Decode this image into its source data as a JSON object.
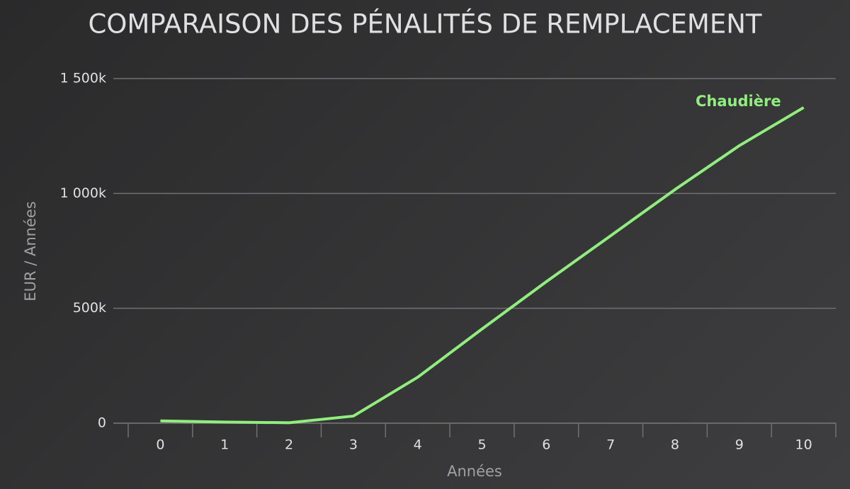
{
  "chart_data": {
    "type": "line",
    "title": "COMPARAISON DES PÉNALITÉS DE REMPLACEMENT",
    "x_label": "Années",
    "y_label": "EUR / Années",
    "categories": [
      "0",
      "1",
      "2",
      "3",
      "4",
      "5",
      "6",
      "7",
      "8",
      "9",
      "10"
    ],
    "series": [
      {
        "name": "Chaudière",
        "color": "#90ee7e",
        "values": [
          10000,
          5000,
          2000,
          31000,
          200000,
          410000,
          616000,
          816000,
          1017000,
          1208000,
          1374000
        ]
      }
    ],
    "ylim": [
      0,
      1500000
    ],
    "yticks": [
      0,
      {
        "value": 500000,
        "label": "500k"
      },
      {
        "value": 1000000,
        "label": "1 000k"
      },
      {
        "value": 1500000,
        "label": "1 500k"
      }
    ],
    "grid": true
  }
}
